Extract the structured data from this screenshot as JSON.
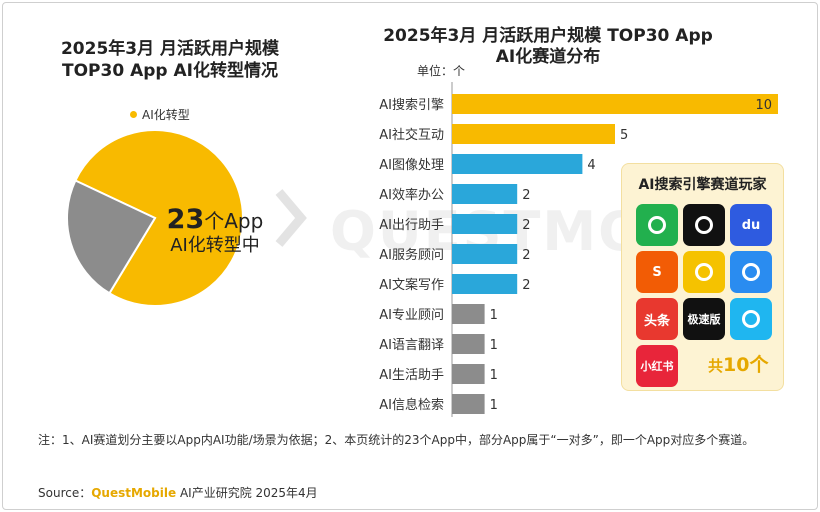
{
  "pie": {
    "title_line1": "2025年3月 月活跃用户规模",
    "title_line2": "TOP30 App AI化转型情况",
    "legend_label": "AI化转型",
    "center_number": "23",
    "center_unit": "个App",
    "center_sub": "AI化转型中"
  },
  "bar": {
    "title_line1": "2025年3月 月活跃用户规模 TOP30 App",
    "title_line2": "AI化赛道分布",
    "unit_label": "单位：个"
  },
  "players_box": {
    "title": "AI搜索引擎赛道玩家",
    "count_prefix": "共",
    "count_value": "10个",
    "apps": [
      {
        "icon": "wechat-icon",
        "text": "",
        "color": "#22B04E"
      },
      {
        "icon": "douyin-icon",
        "text": "",
        "color": "#111111"
      },
      {
        "icon": "baidu-icon",
        "text": "du",
        "color": "#2E5BE0"
      },
      {
        "icon": "sogou-icon",
        "text": "S",
        "color": "#F25C05"
      },
      {
        "icon": "weibo-icon",
        "text": "",
        "color": "#F5C200"
      },
      {
        "icon": "qq-browser-icon",
        "text": "",
        "color": "#2A8CF0"
      },
      {
        "icon": "toutiao-icon",
        "text": "头条",
        "color": "#E8382F"
      },
      {
        "icon": "douyin-lite-icon",
        "text": "极速版",
        "color": "#111111"
      },
      {
        "icon": "qq-icon",
        "text": "",
        "color": "#1FB6F0"
      },
      {
        "icon": "xiaohongshu-icon",
        "text": "小红书",
        "color": "#E8253A"
      }
    ]
  },
  "colors": {
    "gold": "#F8BA00",
    "blue": "#2AA7DA",
    "gray": "#8C8C8C"
  },
  "chart_data": [
    {
      "type": "pie",
      "title": "2025年3月 月活跃用户规模 TOP30 App AI化转型情况",
      "legend": [
        "AI化转型"
      ],
      "slices": [
        {
          "label": "AI化转型",
          "value": 23,
          "color": "#F8BA00"
        },
        {
          "label": "",
          "value": 7,
          "color": "#8C8C8C"
        }
      ]
    },
    {
      "type": "bar",
      "orientation": "horizontal",
      "title": "2025年3月 月活跃用户规模 TOP30 App AI化赛道分布",
      "unit": "单位：个",
      "categories": [
        "AI搜索引擎",
        "AI社交互动",
        "AI图像处理",
        "AI效率办公",
        "AI出行助手",
        "AI服务顾问",
        "AI文案写作",
        "AI专业顾问",
        "AI语言翻译",
        "AI生活助手",
        "AI信息检索"
      ],
      "values": [
        10,
        5,
        4,
        2,
        2,
        2,
        2,
        1,
        1,
        1,
        1
      ],
      "bar_colors": [
        "#F8BA00",
        "#F8BA00",
        "#2AA7DA",
        "#2AA7DA",
        "#2AA7DA",
        "#2AA7DA",
        "#2AA7DA",
        "#8C8C8C",
        "#8C8C8C",
        "#8C8C8C",
        "#8C8C8C"
      ],
      "xlim": [
        0,
        10
      ]
    }
  ],
  "footer": {
    "note": "注：1、AI赛道划分主要以App内AI功能/场景为依据；2、本页统计的23个App中，部分App属于“一对多”，即一个App对应多个赛道。",
    "source_prefix": "Source：",
    "source_brand": "QuestMobile",
    "source_suffix": " AI产业研究院 2025年4月"
  },
  "watermark": "QUESTMOBILE"
}
